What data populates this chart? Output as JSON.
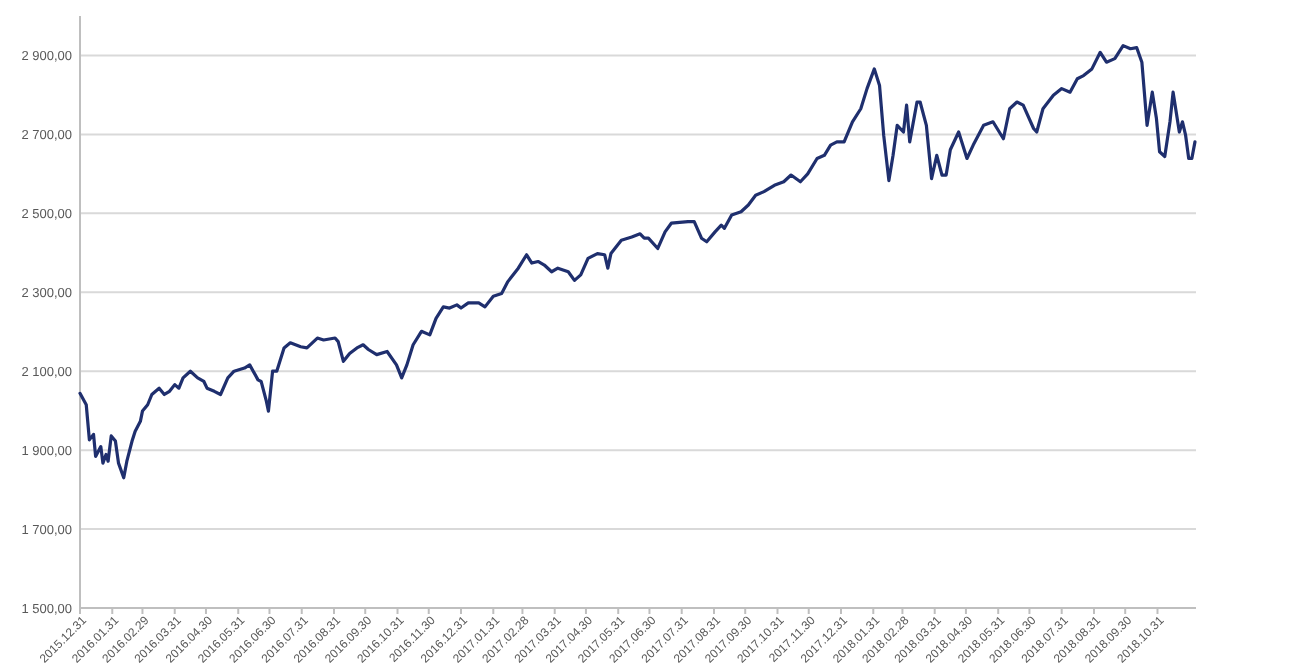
{
  "chart_data": {
    "type": "line",
    "grid": "y",
    "marker": "none",
    "line_style": "solid",
    "xlim": [
      "2015-12-31",
      "2018-12-07"
    ],
    "ylim": [
      1500,
      3000
    ],
    "yticks": [
      {
        "value": 1500,
        "label": "1 500,00"
      },
      {
        "value": 1700,
        "label": "1 700,00"
      },
      {
        "value": 1900,
        "label": "1 900,00"
      },
      {
        "value": 2100,
        "label": "2 100,00"
      },
      {
        "value": 2300,
        "label": "2 300,00"
      },
      {
        "value": 2500,
        "label": "2 500,00"
      },
      {
        "value": 2700,
        "label": "2 700,00"
      },
      {
        "value": 2900,
        "label": "2 900,00"
      }
    ],
    "xticks": [
      {
        "value": "2015-12-31",
        "label": "2015.12.31"
      },
      {
        "value": "2016-01-31",
        "label": "2016.01.31"
      },
      {
        "value": "2016-02-29",
        "label": "2016.02.29"
      },
      {
        "value": "2016-03-31",
        "label": "2016.03.31"
      },
      {
        "value": "2016-04-30",
        "label": "2016.04.30"
      },
      {
        "value": "2016-05-31",
        "label": "2016.05.31"
      },
      {
        "value": "2016-06-30",
        "label": "2016.06.30"
      },
      {
        "value": "2016-07-31",
        "label": "2016.07.31"
      },
      {
        "value": "2016-08-31",
        "label": "2016.08.31"
      },
      {
        "value": "2016-09-30",
        "label": "2016.09.30"
      },
      {
        "value": "2016-10-31",
        "label": "2016.10.31"
      },
      {
        "value": "2016-11-30",
        "label": "2016.11.30"
      },
      {
        "value": "2016-12-31",
        "label": "2016.12.31"
      },
      {
        "value": "2017-01-31",
        "label": "2017.01.31"
      },
      {
        "value": "2017-02-28",
        "label": "2017.02.28"
      },
      {
        "value": "2017-03-31",
        "label": "2017.03.31"
      },
      {
        "value": "2017-04-30",
        "label": "2017.04.30"
      },
      {
        "value": "2017-05-31",
        "label": "2017.05.31"
      },
      {
        "value": "2017-06-30",
        "label": "2017.06.30"
      },
      {
        "value": "2017-07-31",
        "label": "2017.07.31"
      },
      {
        "value": "2017-08-31",
        "label": "2017.08.31"
      },
      {
        "value": "2017-09-30",
        "label": "2017.09.30"
      },
      {
        "value": "2017-10-31",
        "label": "2017.10.31"
      },
      {
        "value": "2017-11-30",
        "label": "2017.11.30"
      },
      {
        "value": "2017-12-31",
        "label": "2017.12.31"
      },
      {
        "value": "2018-01-31",
        "label": "2018.01.31"
      },
      {
        "value": "2018-02-28",
        "label": "2018.02.28"
      },
      {
        "value": "2018-03-31",
        "label": "2018.03.31"
      },
      {
        "value": "2018-04-30",
        "label": "2018.04.30"
      },
      {
        "value": "2018-05-31",
        "label": "2018.05.31"
      },
      {
        "value": "2018-06-30",
        "label": "2018.06.30"
      },
      {
        "value": "2018-07-31",
        "label": "2018.07.31"
      },
      {
        "value": "2018-08-31",
        "label": "2018.08.31"
      },
      {
        "value": "2018-09-30",
        "label": "2018.09.30"
      },
      {
        "value": "2018-10-31",
        "label": "2018.10.31"
      }
    ],
    "x": [
      "2015-12-31",
      "2016-01-06",
      "2016-01-09",
      "2016-01-13",
      "2016-01-15",
      "2016-01-20",
      "2016-01-22",
      "2016-01-25",
      "2016-01-27",
      "2016-01-30",
      "2016-02-03",
      "2016-02-06",
      "2016-02-11",
      "2016-02-14",
      "2016-02-19",
      "2016-02-22",
      "2016-02-27",
      "2016-02-29",
      "2016-03-05",
      "2016-03-09",
      "2016-03-16",
      "2016-03-21",
      "2016-03-26",
      "2016-03-31",
      "2016-04-04",
      "2016-04-08",
      "2016-04-15",
      "2016-04-22",
      "2016-04-28",
      "2016-05-01",
      "2016-05-08",
      "2016-05-14",
      "2016-05-21",
      "2016-05-27",
      "2016-06-06",
      "2016-06-11",
      "2016-06-19",
      "2016-06-22",
      "2016-06-27",
      "2016-06-29",
      "2016-07-03",
      "2016-07-07",
      "2016-07-14",
      "2016-07-20",
      "2016-07-30",
      "2016-08-05",
      "2016-08-15",
      "2016-08-21",
      "2016-09-01",
      "2016-09-04",
      "2016-09-09",
      "2016-09-15",
      "2016-09-22",
      "2016-09-28",
      "2016-10-03",
      "2016-10-11",
      "2016-10-21",
      "2016-10-30",
      "2016-11-04",
      "2016-11-09",
      "2016-11-15",
      "2016-11-23",
      "2016-12-01",
      "2016-12-07",
      "2016-12-14",
      "2016-12-20",
      "2016-12-27",
      "2016-12-31",
      "2017-01-07",
      "2017-01-17",
      "2017-01-23",
      "2017-01-31",
      "2017-02-08",
      "2017-02-14",
      "2017-02-24",
      "2017-03-04",
      "2017-03-09",
      "2017-03-15",
      "2017-03-21",
      "2017-03-28",
      "2017-04-03",
      "2017-04-13",
      "2017-04-19",
      "2017-04-25",
      "2017-05-02",
      "2017-05-11",
      "2017-05-18",
      "2017-05-21",
      "2017-05-24",
      "2017-06-03",
      "2017-06-13",
      "2017-06-21",
      "2017-06-25",
      "2017-06-29",
      "2017-07-08",
      "2017-07-15",
      "2017-07-21",
      "2017-08-06",
      "2017-08-12",
      "2017-08-19",
      "2017-08-24",
      "2017-09-01",
      "2017-09-07",
      "2017-09-10",
      "2017-09-17",
      "2017-09-26",
      "2017-10-03",
      "2017-10-10",
      "2017-10-18",
      "2017-10-28",
      "2017-11-06",
      "2017-11-13",
      "2017-11-22",
      "2017-11-29",
      "2017-12-08",
      "2017-12-15",
      "2017-12-21",
      "2017-12-27",
      "2018-01-03",
      "2018-01-11",
      "2018-01-19",
      "2018-01-25",
      "2018-02-01",
      "2018-02-06",
      "2018-02-10",
      "2018-02-15",
      "2018-02-19",
      "2018-02-23",
      "2018-03-01",
      "2018-03-04",
      "2018-03-07",
      "2018-03-14",
      "2018-03-17",
      "2018-03-23",
      "2018-03-28",
      "2018-04-02",
      "2018-04-07",
      "2018-04-11",
      "2018-04-15",
      "2018-04-23",
      "2018-05-01",
      "2018-05-07",
      "2018-05-17",
      "2018-05-26",
      "2018-06-05",
      "2018-06-11",
      "2018-06-18",
      "2018-06-24",
      "2018-07-04",
      "2018-07-07",
      "2018-07-13",
      "2018-07-23",
      "2018-07-31",
      "2018-08-08",
      "2018-08-15",
      "2018-08-21",
      "2018-08-29",
      "2018-09-06",
      "2018-09-12",
      "2018-09-20",
      "2018-09-28",
      "2018-10-05",
      "2018-10-11",
      "2018-10-16",
      "2018-10-21",
      "2018-10-26",
      "2018-10-30",
      "2018-11-02",
      "2018-11-07",
      "2018-11-12",
      "2018-11-15",
      "2018-11-21",
      "2018-11-24",
      "2018-11-27",
      "2018-11-30",
      "2018-12-03",
      "2018-12-06"
    ],
    "series": [
      {
        "color": "#1f2f6e",
        "values": [
          2044,
          2015,
          1926,
          1940,
          1884,
          1909,
          1867,
          1889,
          1872,
          1936,
          1923,
          1867,
          1830,
          1872,
          1923,
          1948,
          1973,
          1999,
          2015,
          2041,
          2057,
          2041,
          2049,
          2066,
          2057,
          2083,
          2100,
          2083,
          2074,
          2057,
          2049,
          2041,
          2083,
          2100,
          2108,
          2116,
          2078,
          2074,
          2024,
          1999,
          2100,
          2100,
          2159,
          2172,
          2162,
          2159,
          2184,
          2179,
          2184,
          2175,
          2125,
          2145,
          2159,
          2167,
          2155,
          2142,
          2150,
          2116,
          2083,
          2116,
          2167,
          2201,
          2192,
          2234,
          2263,
          2260,
          2268,
          2260,
          2273,
          2273,
          2263,
          2290,
          2297,
          2327,
          2361,
          2395,
          2374,
          2378,
          2369,
          2352,
          2361,
          2352,
          2330,
          2344,
          2386,
          2398,
          2395,
          2361,
          2398,
          2432,
          2440,
          2448,
          2437,
          2437,
          2411,
          2453,
          2475,
          2479,
          2479,
          2437,
          2428,
          2453,
          2470,
          2462,
          2496,
          2504,
          2521,
          2546,
          2555,
          2571,
          2580,
          2597,
          2580,
          2600,
          2639,
          2647,
          2673,
          2681,
          2681,
          2732,
          2765,
          2816,
          2866,
          2824,
          2698,
          2583,
          2647,
          2723,
          2706,
          2774,
          2681,
          2782,
          2782,
          2723,
          2588,
          2647,
          2597,
          2597,
          2661,
          2706,
          2639,
          2673,
          2723,
          2732,
          2689,
          2765,
          2782,
          2774,
          2715,
          2706,
          2765,
          2799,
          2816,
          2807,
          2841,
          2849,
          2866,
          2908,
          2883,
          2892,
          2925,
          2917,
          2920,
          2883,
          2723,
          2807,
          2740,
          2656,
          2644,
          2732,
          2807,
          2706,
          2732,
          2698,
          2639,
          2639,
          2681
        ]
      }
    ]
  }
}
